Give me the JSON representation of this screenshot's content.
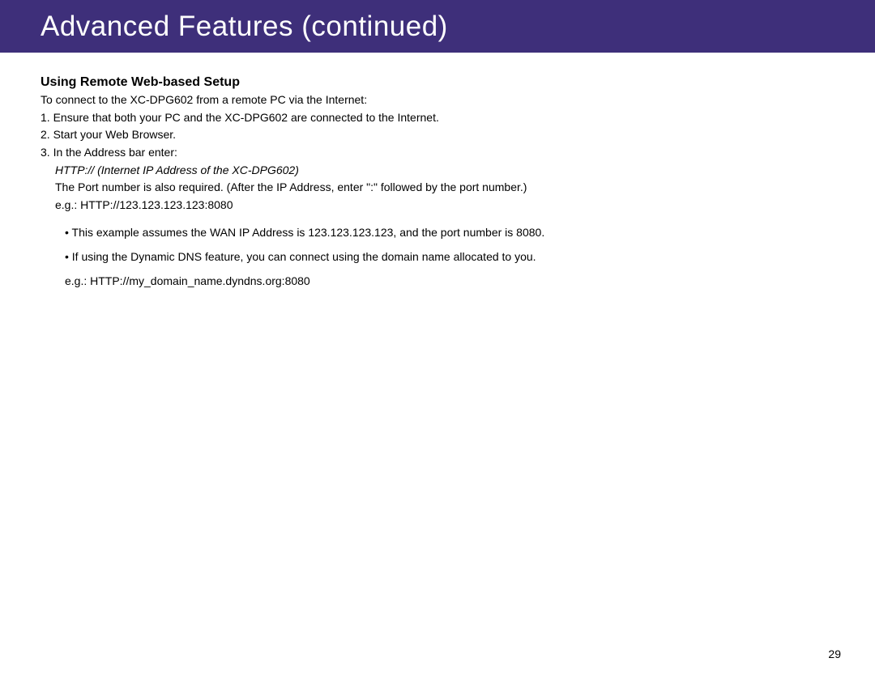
{
  "header": {
    "title": "Advanced Features (continued)",
    "background_color": "#3e2f7a",
    "text_color": "#ffffff"
  },
  "section": {
    "heading": "Using Remote Web-based Setup",
    "intro": "To connect to the XC-DPG602 from a remote PC via the Internet:",
    "step1": "1. Ensure that both your PC and the XC-DPG602 are connected to the Internet.",
    "step2": "2. Start your Web Browser.",
    "step3": "3. In the Address bar enter:",
    "step3_italic": "HTTP:// (Internet IP Address of the XC-DPG602)",
    "step3_port": "The Port number is also required. (After the IP Address, enter \":\" followed by the port number.)",
    "step3_eg": "e.g.:  HTTP://123.123.123.123:8080",
    "bullet1": "• This example assumes the WAN IP Address is 123.123.123.123, and the port number is 8080.",
    "bullet2": "• If using the Dynamic DNS feature, you can connect using the domain name allocated to you.",
    "bullet3": "e.g.: HTTP://my_domain_name.dyndns.org:8080"
  },
  "page_number": "29"
}
